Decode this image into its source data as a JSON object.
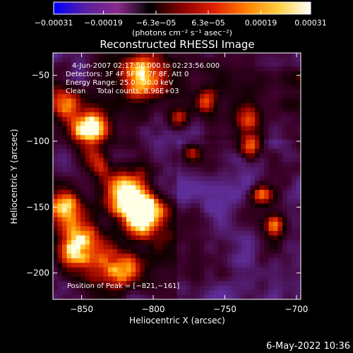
{
  "chart_data": {
    "type": "heatmap",
    "title": "Reconstructed RHESSI Image",
    "xlabel": "Heliocentric X (arcsec)",
    "ylabel": "Heliocentric Y (arcsec)",
    "xlim": [
      -870,
      -697
    ],
    "ylim": [
      -220,
      -33
    ],
    "x_ticks": [
      -850,
      -800,
      -750,
      -700
    ],
    "x_tick_labels": [
      "−850",
      "−800",
      "−750",
      "−700"
    ],
    "y_ticks": [
      -50,
      -100,
      -150,
      -200
    ],
    "y_tick_labels": [
      "−50",
      "−100",
      "−150",
      "−200"
    ],
    "colorbar": {
      "min": -0.00031,
      "max": 0.00031,
      "ticks": [
        -0.00031,
        -0.00019,
        -6.3e-05,
        6.3e-05,
        0.00019,
        0.00031
      ],
      "tick_labels": [
        "−0.00031",
        "−0.00019",
        "−6.3e−05",
        "6.3e−05",
        "0.00019",
        "0.00031"
      ],
      "units": "(photons cm⁻² s⁻¹ asec⁻²)",
      "colors": [
        "#0000ff",
        "#5a1fa0",
        "#8a2a8a",
        "#000000",
        "#8a0000",
        "#e02000",
        "#ff8000",
        "#ffd040",
        "#ffffff"
      ]
    },
    "annotations": [
      "4-Jun-2007 02:17:56.000 to 02:23:56.000",
      "Detectors: 3F 4F 5F 6F 7F 8F, Att 0",
      "Energy Range: 25.0 - 50.0 keV",
      "Clean     Total counts: 8.96E+03",
      "Position of Peak = [−821,−161]"
    ],
    "peak": {
      "x": -821,
      "y": -161
    },
    "grid": false
  },
  "footer": {
    "timestamp": "6-May-2022 10:36"
  }
}
